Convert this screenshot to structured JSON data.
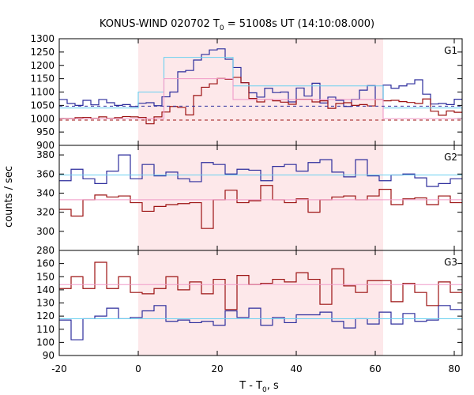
{
  "chart_data": {
    "type": "line",
    "title_main": "KONUS-WIND 020702 T",
    "title_sub": "0",
    "title_rest": " = 51008s UT (14:10:08.000)",
    "xlabel_main": "T - T",
    "xlabel_sub": "0",
    "xlabel_rest": ", s",
    "ylabel": "counts / sec",
    "xlim": [
      -20,
      82
    ],
    "x_ticks": [
      -20,
      0,
      20,
      40,
      60,
      80
    ],
    "highlight_interval": [
      0,
      62
    ],
    "colors": {
      "blue": "#2d2d9c",
      "red": "#9c1212",
      "cyan": "#6ad0f0",
      "pink": "#f09ac8",
      "shade": "#fde8ea"
    },
    "panels": [
      {
        "label": "G1",
        "ylim": [
          900,
          1300
        ],
        "y_ticks": [
          900,
          950,
          1000,
          1050,
          1100,
          1150,
          1200,
          1250,
          1300
        ],
        "step_x0": -20,
        "step_width": 2.0,
        "series": [
          {
            "name": "",
            "color": "blue",
            "values": [
              1072,
              1057,
              1050,
              1069,
              1052,
              1072,
              1060,
              1050,
              1053,
              1046,
              1058,
              1060,
              1049,
              1082,
              1100,
              1176,
              1181,
              1220,
              1241,
              1258,
              1262,
              1223,
              1192,
              1135,
              1097,
              1081,
              1114,
              1098,
              1100,
              1063,
              1115,
              1085,
              1133,
              1059,
              1081,
              1069,
              1046,
              1073,
              1107,
              1124,
              1072,
              1126,
              1114,
              1123,
              1131,
              1146,
              1092,
              1055,
              1057,
              1053,
              1073,
              1041,
              1079,
              1055,
              1045,
              1047,
              1044,
              1063,
              1049,
              1055,
              1048
            ]
          },
          {
            "name": "",
            "color": "red",
            "values": [
              1000,
              1000,
              1004,
              1005,
              1001,
              1007,
              1001,
              1004,
              1008,
              1007,
              1005,
              981,
              1007,
              1025,
              1046,
              1042,
              1014,
              1087,
              1118,
              1131,
              1151,
              1148,
              1155,
              1135,
              1076,
              1063,
              1072,
              1067,
              1062,
              1054,
              1073,
              1073,
              1063,
              1067,
              1039,
              1057,
              1060,
              1050,
              1053,
              1048,
              1072,
              1067,
              1069,
              1064,
              1061,
              1057,
              1074,
              1028,
              1013,
              1029,
              1024,
              1020,
              1012,
              999,
              1016,
              1009,
              1003,
              1017,
              1010,
              995,
              999
            ]
          },
          {
            "name": "",
            "color": "cyan",
            "type": "step",
            "x": [
              -20,
              0,
              6.5,
              24,
              62,
              82
            ],
            "values": [
              1040,
              1100,
              1230,
              1123,
              1040
            ]
          },
          {
            "name": "",
            "color": "pink",
            "type": "step",
            "x": [
              -20,
              6.5,
              24,
              62,
              82
            ],
            "values": [
              1000,
              1150,
              1072,
              1000
            ]
          },
          {
            "name": "",
            "color": "blue",
            "type": "dashed",
            "level": 1047
          },
          {
            "name": "",
            "color": "red",
            "type": "dashed",
            "level": 995
          }
        ]
      },
      {
        "label": "G2",
        "ylim": [
          280,
          390
        ],
        "y_ticks": [
          280,
          300,
          320,
          340,
          360,
          380
        ],
        "step_x0": -20,
        "step_width": 3.0,
        "series": [
          {
            "name": "",
            "color": "blue",
            "values": [
              353,
              365,
              355,
              350,
              363,
              380,
              355,
              370,
              358,
              362,
              355,
              352,
              372,
              370,
              360,
              365,
              364,
              353,
              368,
              370,
              363,
              372,
              375,
              362,
              357,
              375,
              358,
              353,
              359,
              360,
              356,
              347,
              350,
              355,
              364,
              358,
              365,
              358,
              357
            ]
          },
          {
            "name": "",
            "color": "red",
            "values": [
              323,
              316,
              333,
              338,
              336,
              337,
              330,
              321,
              326,
              328,
              329,
              330,
              303,
              333,
              343,
              330,
              332,
              348,
              333,
              330,
              334,
              320,
              333,
              336,
              337,
              333,
              337,
              344,
              328,
              334,
              335,
              328,
              337,
              330,
              333,
              333,
              337,
              330,
              329
            ]
          },
          {
            "name": "",
            "color": "cyan",
            "type": "flat",
            "level": 359
          },
          {
            "name": "",
            "color": "pink",
            "type": "flat",
            "level": 333
          }
        ]
      },
      {
        "label": "G3",
        "ylim": [
          90,
          170
        ],
        "y_ticks": [
          90,
          100,
          110,
          120,
          130,
          140,
          150,
          160
        ],
        "step_x0": -20,
        "step_width": 3.0,
        "series": [
          {
            "name": "",
            "color": "blue",
            "values": [
              117,
              102,
              118,
              120,
              126,
              118,
              119,
              124,
              128,
              116,
              117,
              115,
              116,
              113,
              124,
              119,
              126,
              113,
              119,
              115,
              121,
              121,
              123,
              116,
              111,
              118,
              114,
              123,
              114,
              122,
              116,
              117,
              128,
              125,
              118,
              113,
              117,
              117,
              118
            ]
          },
          {
            "name": "",
            "color": "red",
            "values": [
              141,
              150,
              141,
              161,
              141,
              150,
              138,
              137,
              141,
              150,
              140,
              146,
              137,
              148,
              125,
              151,
              144,
              145,
              148,
              146,
              153,
              148,
              129,
              156,
              143,
              138,
              147,
              147,
              131,
              145,
              138,
              128,
              146,
              138,
              148,
              144,
              142,
              140,
              140
            ]
          },
          {
            "name": "",
            "color": "cyan",
            "type": "flat",
            "level": 118
          },
          {
            "name": "",
            "color": "pink",
            "type": "flat",
            "level": 144
          }
        ]
      }
    ]
  }
}
